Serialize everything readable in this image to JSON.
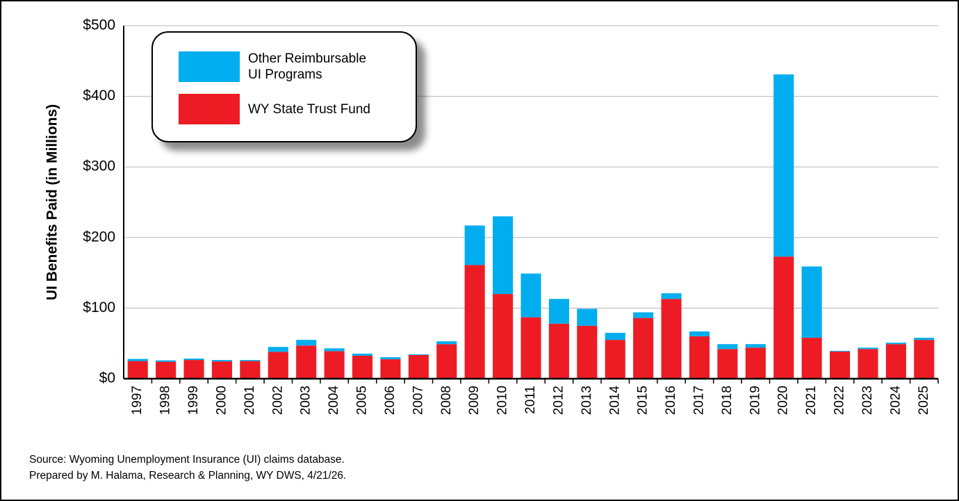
{
  "chart_data": {
    "type": "stacked_bar",
    "y_label": "UI Benefits Paid (in Millions)",
    "categories": [
      "1997",
      "1998",
      "1999",
      "2000",
      "2001",
      "2002",
      "2003",
      "2004",
      "2005",
      "2006",
      "2007",
      "2008",
      "2009",
      "2010",
      "2011",
      "2012",
      "2013",
      "2014",
      "2015",
      "2016",
      "2017",
      "2018",
      "2019",
      "2020",
      "2021",
      "2022",
      "2023",
      "2024",
      "2025"
    ],
    "series": [
      {
        "name": "WY State Trust Fund",
        "color": "#ed1c24",
        "values": [
          25,
          24,
          26.5,
          24.5,
          25,
          38,
          47,
          39,
          32.5,
          27.5,
          33.5,
          49,
          161,
          120,
          87,
          78,
          75,
          55,
          86,
          113,
          60,
          42,
          44,
          173,
          58,
          38.5,
          42,
          49,
          55
        ]
      },
      {
        "name": "Other Reimbursable UI Programs",
        "color": "#00aeef",
        "values": [
          3,
          2,
          2,
          2,
          1.5,
          7,
          8,
          4,
          3,
          3,
          1,
          4,
          56,
          110,
          62,
          35,
          24,
          10,
          8,
          8,
          7,
          7,
          5,
          258,
          101,
          1,
          2,
          2,
          3
        ]
      }
    ],
    "legend_order": [
      1,
      0
    ],
    "ylim": [
      0,
      500
    ],
    "yticks": [
      {
        "value": 0,
        "label": "$0"
      },
      {
        "value": 100,
        "label": "$100"
      },
      {
        "value": 200,
        "label": "$200"
      },
      {
        "value": 300,
        "label": "$300"
      },
      {
        "value": 400,
        "label": "$400"
      },
      {
        "value": 500,
        "label": "$500"
      }
    ],
    "grid": true,
    "source": "Source: Wyoming Unemployment Insurance (UI) claims database.",
    "prepared_by": "Prepared by M. Halama, Research & Planning, WY DWS, 4/21/26."
  }
}
